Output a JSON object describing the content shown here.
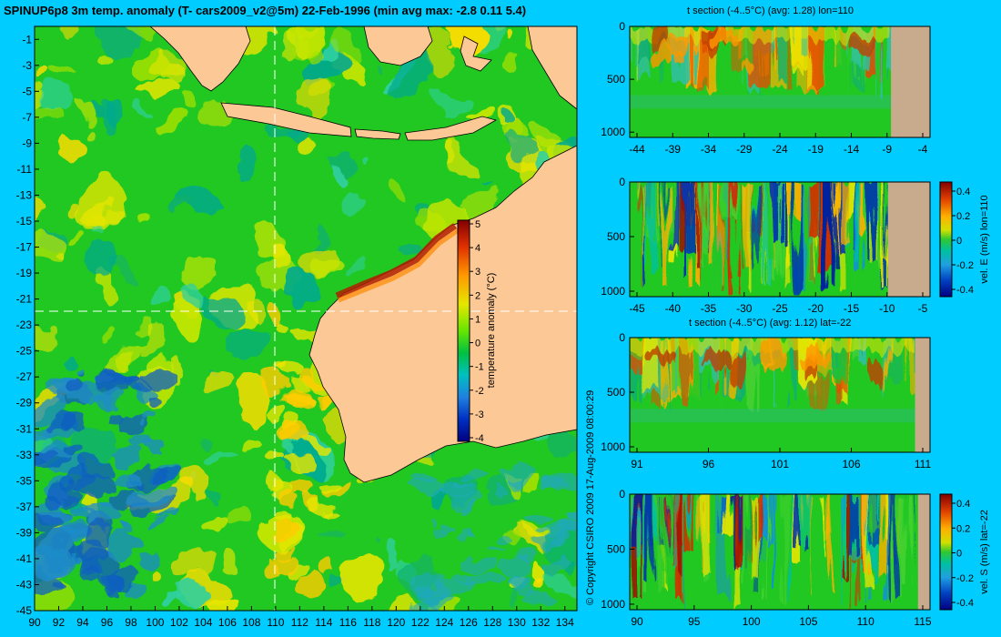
{
  "title": "SPINUP6p8 3m temp. anomaly (T- cars2009_v2@5m) 22-Feb-1996 (min avg max: -2.8 0.11 5.4)",
  "copyright": "© Copyright CSIRO 2009   17-Aug-2009 08:00:29",
  "colors": {
    "background": "#00ccff",
    "land": "#fcc896",
    "section_land": "#c8aa8c",
    "ocean_base": "#22c822",
    "ocean_warm": "#e6e600",
    "ocean_cold": "#1e8cc8"
  },
  "map": {
    "lon_ticks": [
      "90",
      "92",
      "94",
      "96",
      "98",
      "100",
      "102",
      "104",
      "106",
      "108",
      "110",
      "112",
      "114",
      "116",
      "118",
      "120",
      "122",
      "124",
      "126",
      "128",
      "130",
      "132",
      "134"
    ],
    "lat_ticks": [
      "-1",
      "-3",
      "-5",
      "-7",
      "-9",
      "-11",
      "-13",
      "-15",
      "-17",
      "-19",
      "-21",
      "-23",
      "-25",
      "-27",
      "-29",
      "-31",
      "-33",
      "-35",
      "-37",
      "-39",
      "-41",
      "-43",
      "-45"
    ],
    "lon_range": [
      90,
      135
    ],
    "lat_range": [
      -45,
      0
    ],
    "crosshair": {
      "lon": 110,
      "lat": -22
    },
    "colorbar": {
      "label": "temperature anomaly (°C)",
      "ticks": [
        "5",
        "4",
        "3",
        "2",
        "1",
        "0",
        "-1",
        "-2",
        "-3",
        "-4"
      ]
    }
  },
  "sections": [
    {
      "title": "t section (-4..5°C) (avg: 1.28) lon=110",
      "x_ticks": [
        "-44",
        "-39",
        "-34",
        "-29",
        "-24",
        "-19",
        "-14",
        "-9",
        "-4"
      ],
      "y_ticks": [
        "0",
        "500",
        "1000"
      ]
    },
    {
      "title": "",
      "x_ticks": [
        "-45",
        "-40",
        "-35",
        "-30",
        "-25",
        "-20",
        "-15",
        "-10",
        "-5"
      ],
      "y_ticks": [
        "0",
        "500",
        "1000"
      ],
      "colorbar_label": "vel. E (m/s) lon=110",
      "colorbar_ticks": [
        "0.4",
        "0.2",
        "0",
        "-0.2",
        "-0.4"
      ]
    },
    {
      "title": "t section (-4..5°C) (avg: 1.12) lat=-22",
      "x_ticks": [
        "91",
        "96",
        "101",
        "106",
        "111"
      ],
      "y_ticks": [
        "0",
        "500",
        "1000"
      ]
    },
    {
      "title": "",
      "x_ticks": [
        "90",
        "95",
        "100",
        "105",
        "110",
        "115"
      ],
      "y_ticks": [
        "0",
        "500",
        "1000"
      ],
      "colorbar_label": "vel. S (m/s) lat=-22",
      "colorbar_ticks": [
        "0.4",
        "0.2",
        "0",
        "-0.2",
        "-0.4"
      ]
    }
  ]
}
